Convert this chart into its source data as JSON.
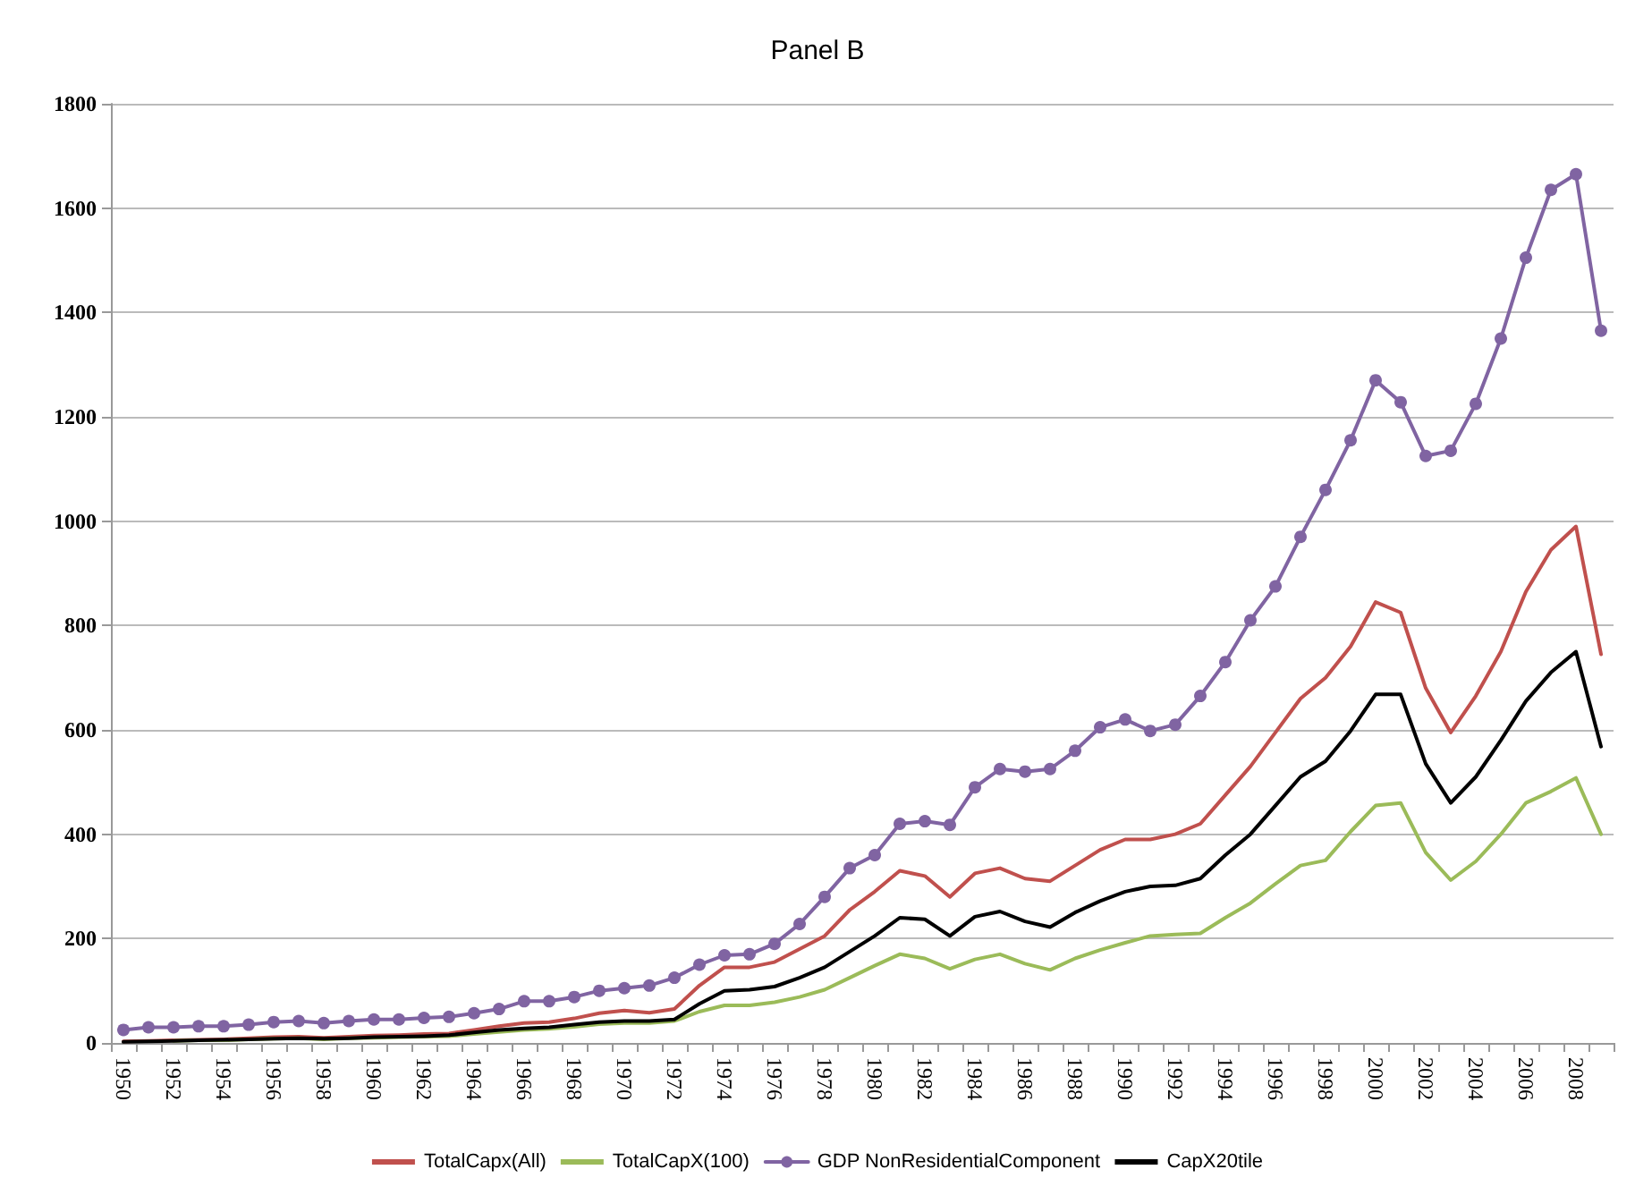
{
  "chart_data": {
    "type": "line",
    "title": "Panel B",
    "categories": [
      "1950",
      null,
      "1952",
      null,
      "1954",
      null,
      "1956",
      null,
      "1958",
      null,
      "1960",
      null,
      "1962",
      null,
      "1964",
      null,
      "1966",
      null,
      "1968",
      null,
      "1970",
      null,
      "1972",
      null,
      "1974",
      null,
      "1976",
      null,
      "1978",
      null,
      "1980",
      null,
      "1982",
      null,
      "1984",
      null,
      "1986",
      null,
      "1988",
      null,
      "1990",
      null,
      "1992",
      null,
      "1994",
      null,
      "1996",
      null,
      "1998",
      null,
      "2000",
      null,
      "2002",
      null,
      "2004",
      null,
      "2006",
      null,
      "2008",
      null
    ],
    "series": [
      {
        "name": "TotalCapx(All)",
        "color": "#c0504d",
        "marker": "none",
        "values": [
          3,
          4,
          5,
          6,
          7,
          9,
          11,
          12,
          10,
          12,
          14,
          15,
          17,
          18,
          25,
          32,
          38,
          40,
          47,
          57,
          62,
          58,
          65,
          110,
          145,
          145,
          155,
          180,
          205,
          255,
          290,
          330,
          320,
          280,
          325,
          335,
          315,
          310,
          340,
          370,
          390,
          390,
          400,
          420,
          475,
          530,
          595,
          660,
          700,
          760,
          845,
          825,
          680,
          595,
          665,
          750,
          865,
          945,
          990,
          745
        ]
      },
      {
        "name": "TotalCapX(100)",
        "color": "#9bbb59",
        "marker": "none",
        "values": [
          null,
          null,
          4,
          5,
          5,
          7,
          8,
          9,
          7,
          9,
          10,
          11,
          12,
          13,
          17,
          21,
          25,
          27,
          31,
          36,
          38,
          38,
          42,
          60,
          72,
          72,
          78,
          88,
          102,
          125,
          148,
          170,
          162,
          142,
          160,
          170,
          152,
          140,
          162,
          178,
          192,
          205,
          208,
          210,
          240,
          268,
          305,
          340,
          350,
          405,
          455,
          460,
          365,
          312,
          348,
          400,
          460,
          482,
          508,
          400
        ]
      },
      {
        "name": "GDP NonResidentialComponent",
        "color": "#8064a2",
        "marker": "circle",
        "values": [
          25,
          30,
          30,
          32,
          32,
          35,
          40,
          42,
          38,
          42,
          45,
          45,
          48,
          50,
          57,
          65,
          80,
          80,
          88,
          100,
          105,
          110,
          125,
          150,
          168,
          170,
          190,
          228,
          280,
          335,
          360,
          420,
          425,
          418,
          490,
          525,
          520,
          525,
          560,
          605,
          620,
          598,
          610,
          665,
          730,
          810,
          875,
          970,
          1060,
          1155,
          1270,
          1228,
          1125,
          1135,
          1225,
          1350,
          1505,
          1635,
          1665,
          1365
        ]
      },
      {
        "name": "CapX20tile",
        "color": "#000000",
        "marker": "none",
        "values": [
          2,
          3,
          4,
          5,
          6,
          7,
          8,
          9,
          8,
          9,
          11,
          12,
          13,
          15,
          20,
          25,
          28,
          30,
          35,
          40,
          42,
          42,
          45,
          75,
          100,
          102,
          108,
          125,
          145,
          175,
          205,
          240,
          237,
          205,
          242,
          252,
          233,
          222,
          250,
          272,
          290,
          300,
          302,
          315,
          360,
          400,
          455,
          510,
          540,
          598,
          668,
          668,
          535,
          460,
          510,
          580,
          655,
          710,
          750,
          568
        ]
      }
    ],
    "ylim": [
      0,
      1800
    ],
    "yticks": [
      0,
      200,
      400,
      600,
      800,
      1000,
      1200,
      1400,
      1600,
      1800
    ],
    "grid": "y",
    "legend": "bottom"
  }
}
